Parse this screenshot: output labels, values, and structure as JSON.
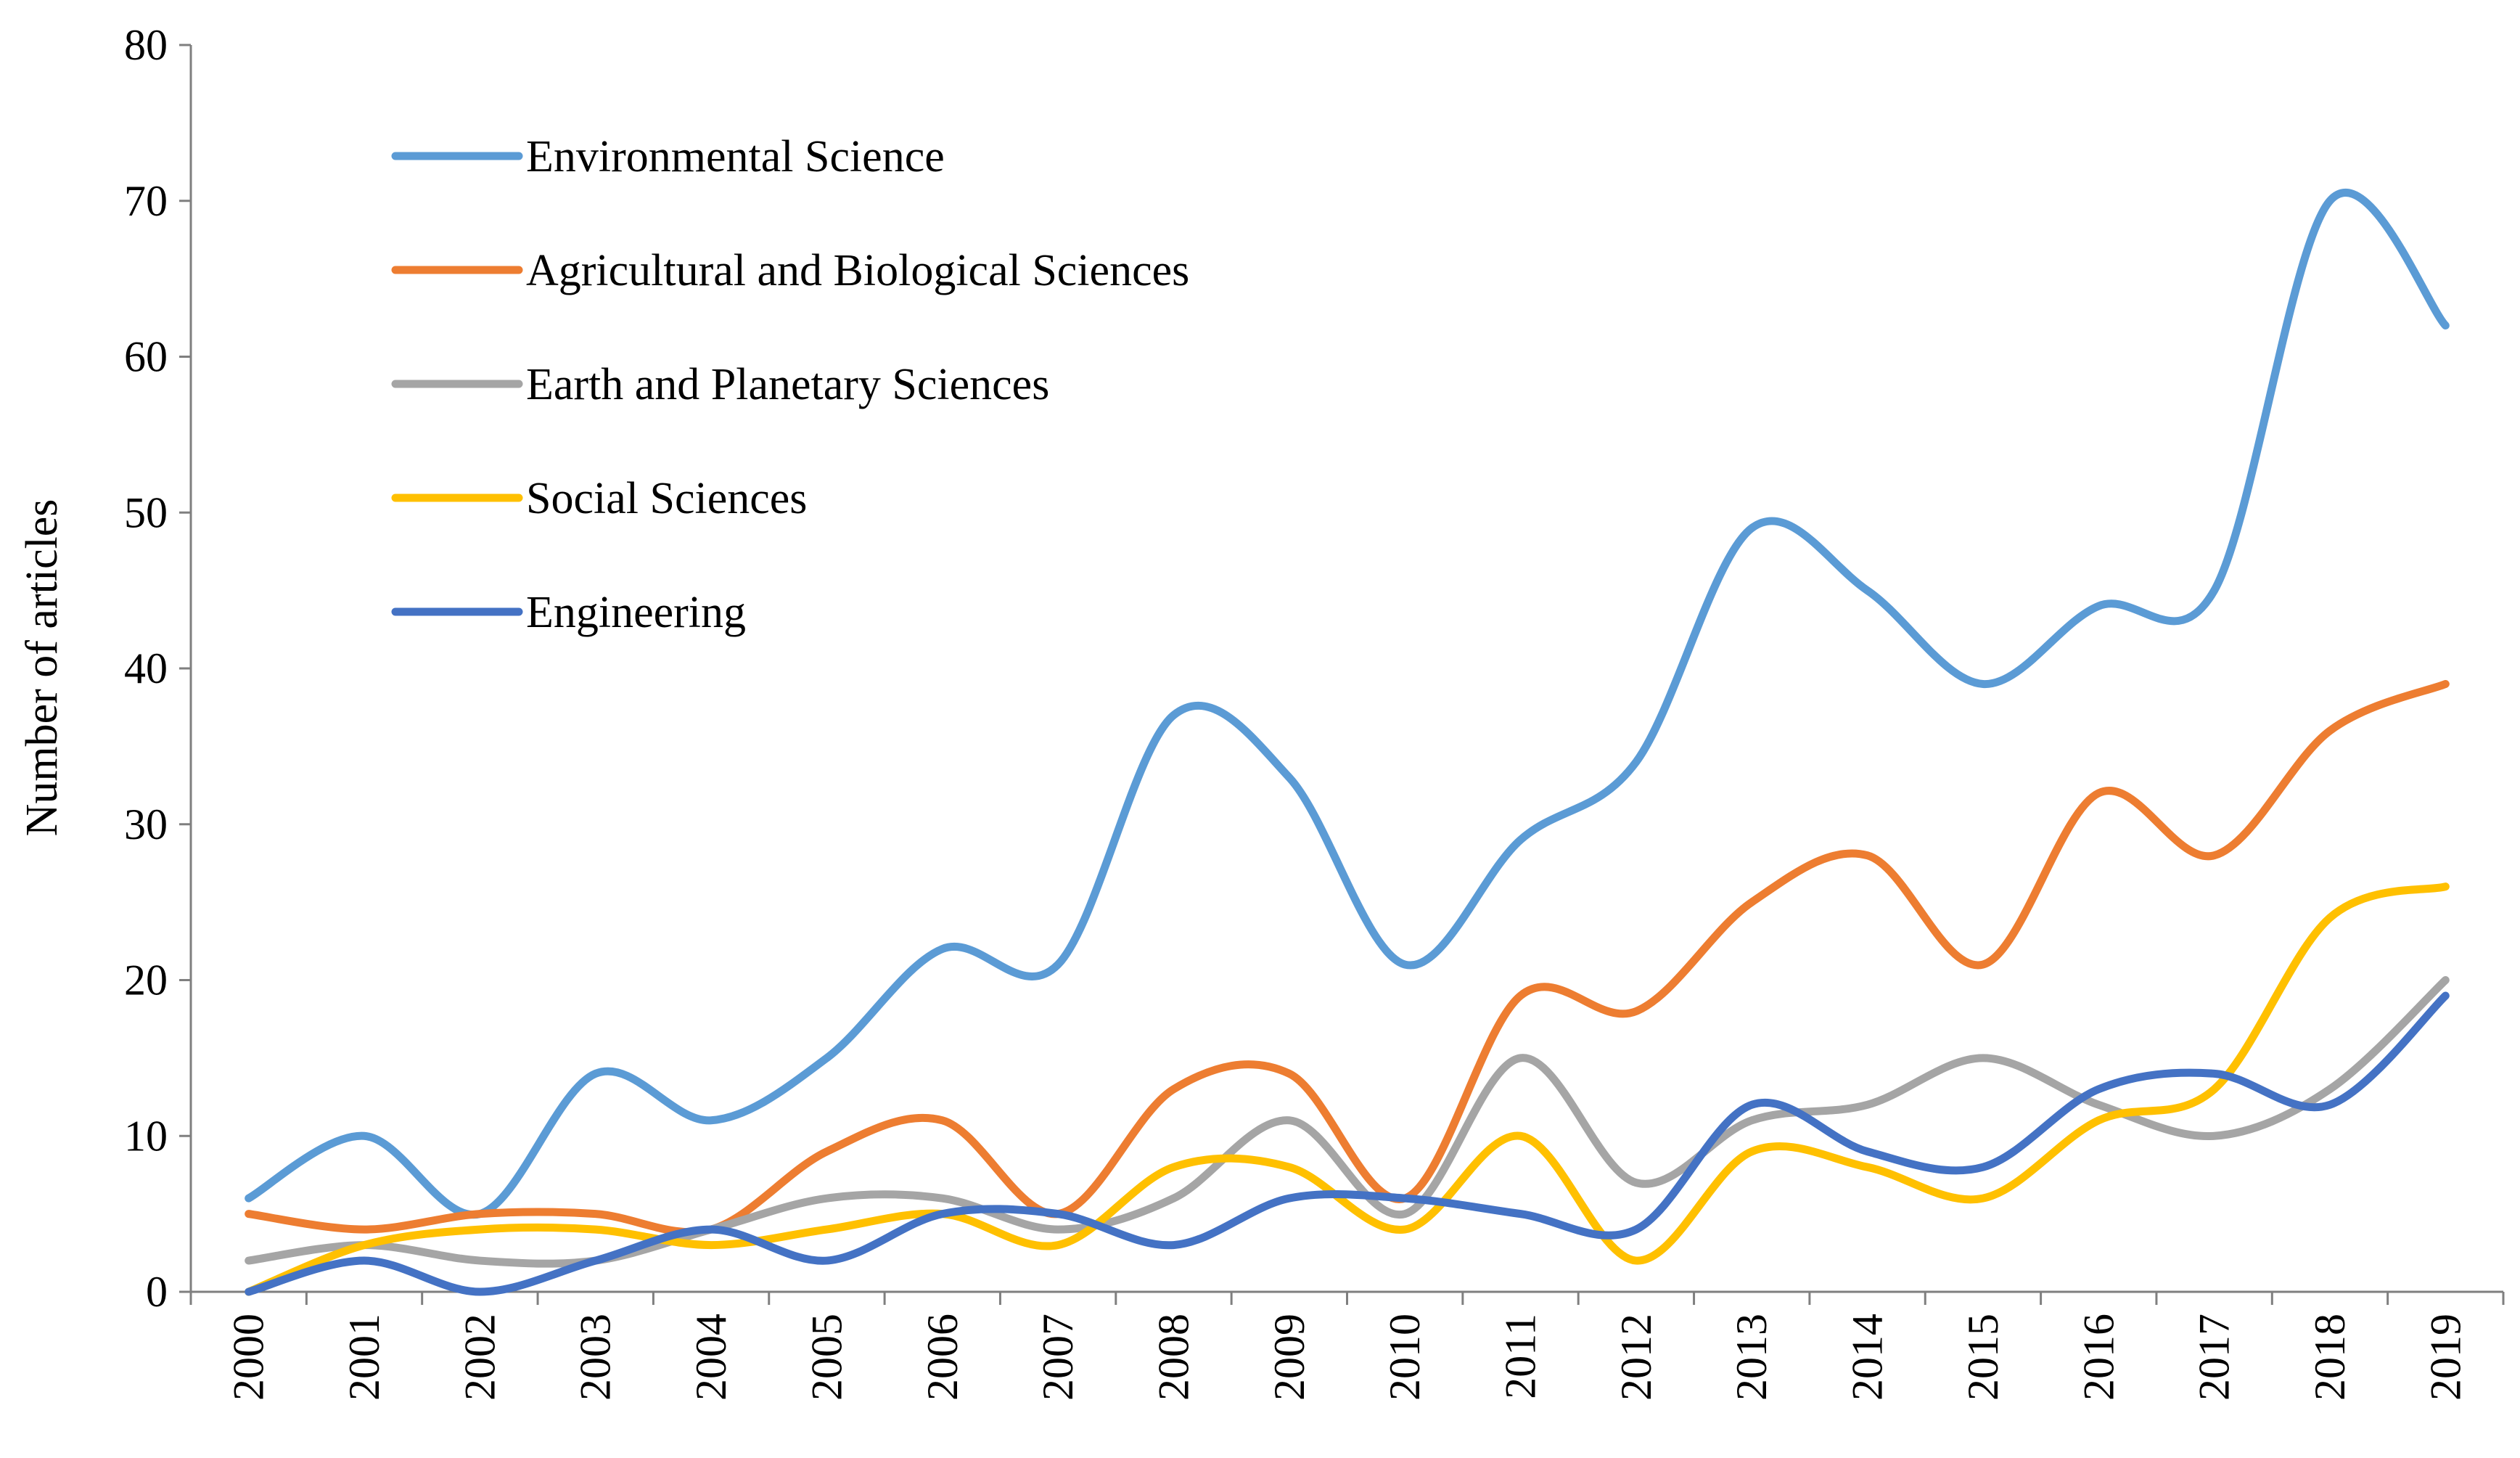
{
  "chart_data": {
    "type": "line",
    "title": "",
    "xlabel": "",
    "ylabel": "Number of articles",
    "ylim": [
      0,
      80
    ],
    "yticks": [
      0,
      10,
      20,
      30,
      40,
      50,
      60,
      70,
      80
    ],
    "ytick_labels": [
      "0",
      "10",
      "20",
      "30",
      "40",
      "50",
      "60",
      "70",
      "80"
    ],
    "grid": false,
    "smooth": true,
    "legend_position": "top-left",
    "categories": [
      "2000",
      "2001",
      "2002",
      "2003",
      "2004",
      "2005",
      "2006",
      "2007",
      "2008",
      "2009",
      "2010",
      "2011",
      "2012",
      "2013",
      "2014",
      "2015",
      "2016",
      "2017",
      "2018",
      "2019"
    ],
    "series": [
      {
        "name": "Environmental Science",
        "color": "#5B9BD5",
        "values": [
          6,
          10,
          5,
          14,
          11,
          15,
          22,
          21,
          37,
          33,
          21,
          29,
          34,
          49,
          45,
          39,
          44,
          45,
          70,
          62
        ]
      },
      {
        "name": "Agricultural and Biological Sciences",
        "color": "#ED7D31",
        "values": [
          5,
          4,
          5,
          5,
          4,
          9,
          11,
          5,
          13,
          14,
          6,
          19,
          18,
          25,
          28,
          21,
          32,
          28,
          36,
          39
        ]
      },
      {
        "name": "Earth and Planetary Sciences",
        "color": "#A5A5A5",
        "values": [
          2,
          3,
          2,
          2,
          4,
          6,
          6,
          4,
          6,
          11,
          5,
          15,
          7,
          11,
          12,
          15,
          12,
          10,
          13,
          20
        ]
      },
      {
        "name": "Social Sciences",
        "color": "#FFC000",
        "values": [
          0,
          3,
          4,
          4,
          3,
          4,
          5,
          3,
          8,
          8,
          4,
          10,
          2,
          9,
          8,
          6,
          11,
          13,
          24,
          26
        ]
      },
      {
        "name": "Engineering",
        "color": "#4472C4",
        "values": [
          0,
          2,
          0,
          2,
          4,
          2,
          5,
          5,
          3,
          6,
          6,
          5,
          4,
          12,
          9,
          8,
          13,
          14,
          12,
          19
        ]
      }
    ]
  }
}
